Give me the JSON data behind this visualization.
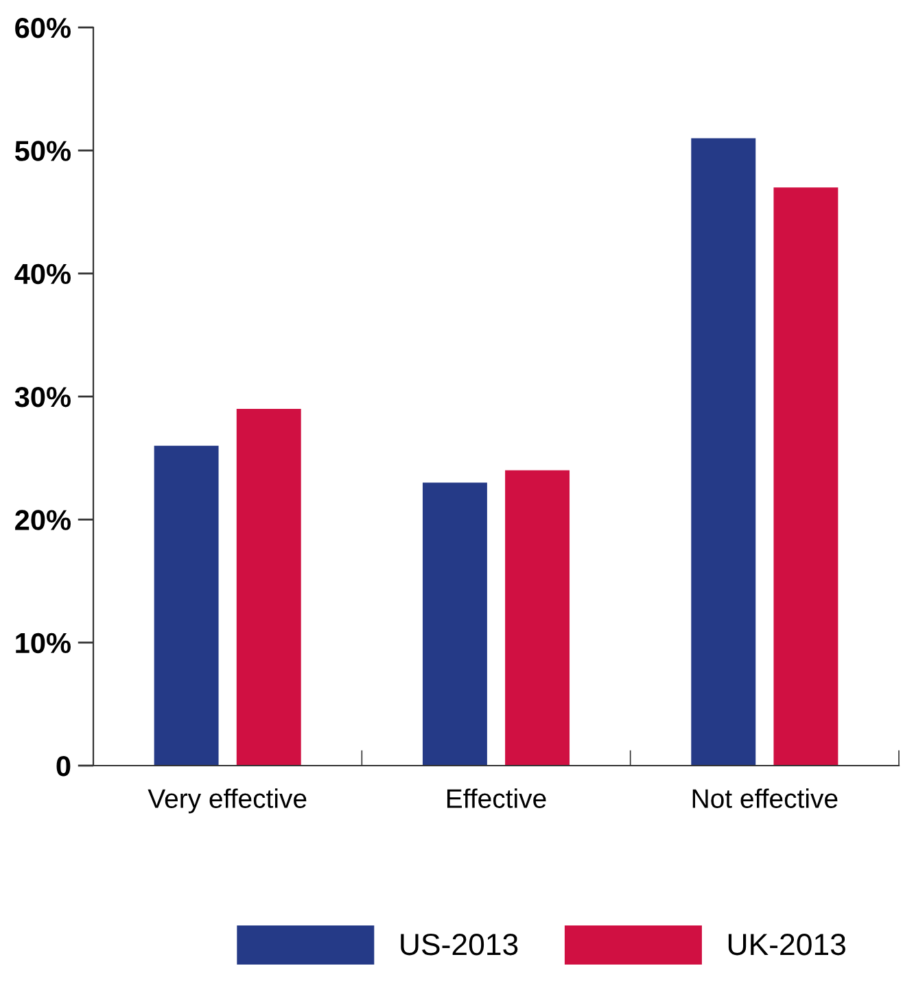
{
  "chart_data": {
    "type": "bar",
    "categories": [
      "Very effective",
      "Effective",
      "Not effective"
    ],
    "series": [
      {
        "name": "US-2013",
        "color": "#253a87",
        "values": [
          26,
          23,
          51
        ]
      },
      {
        "name": "UK-2013",
        "color": "#d01042",
        "values": [
          29,
          24,
          47
        ]
      }
    ],
    "ylim": [
      0,
      60
    ],
    "yticks": [
      {
        "value": 0,
        "label": "0"
      },
      {
        "value": 10,
        "label": "10%"
      },
      {
        "value": 20,
        "label": "20%"
      },
      {
        "value": 30,
        "label": "30%"
      },
      {
        "value": 40,
        "label": "40%"
      },
      {
        "value": 50,
        "label": "50%"
      },
      {
        "value": 60,
        "label": "60%"
      }
    ],
    "grid": false,
    "legend": "bottom"
  }
}
